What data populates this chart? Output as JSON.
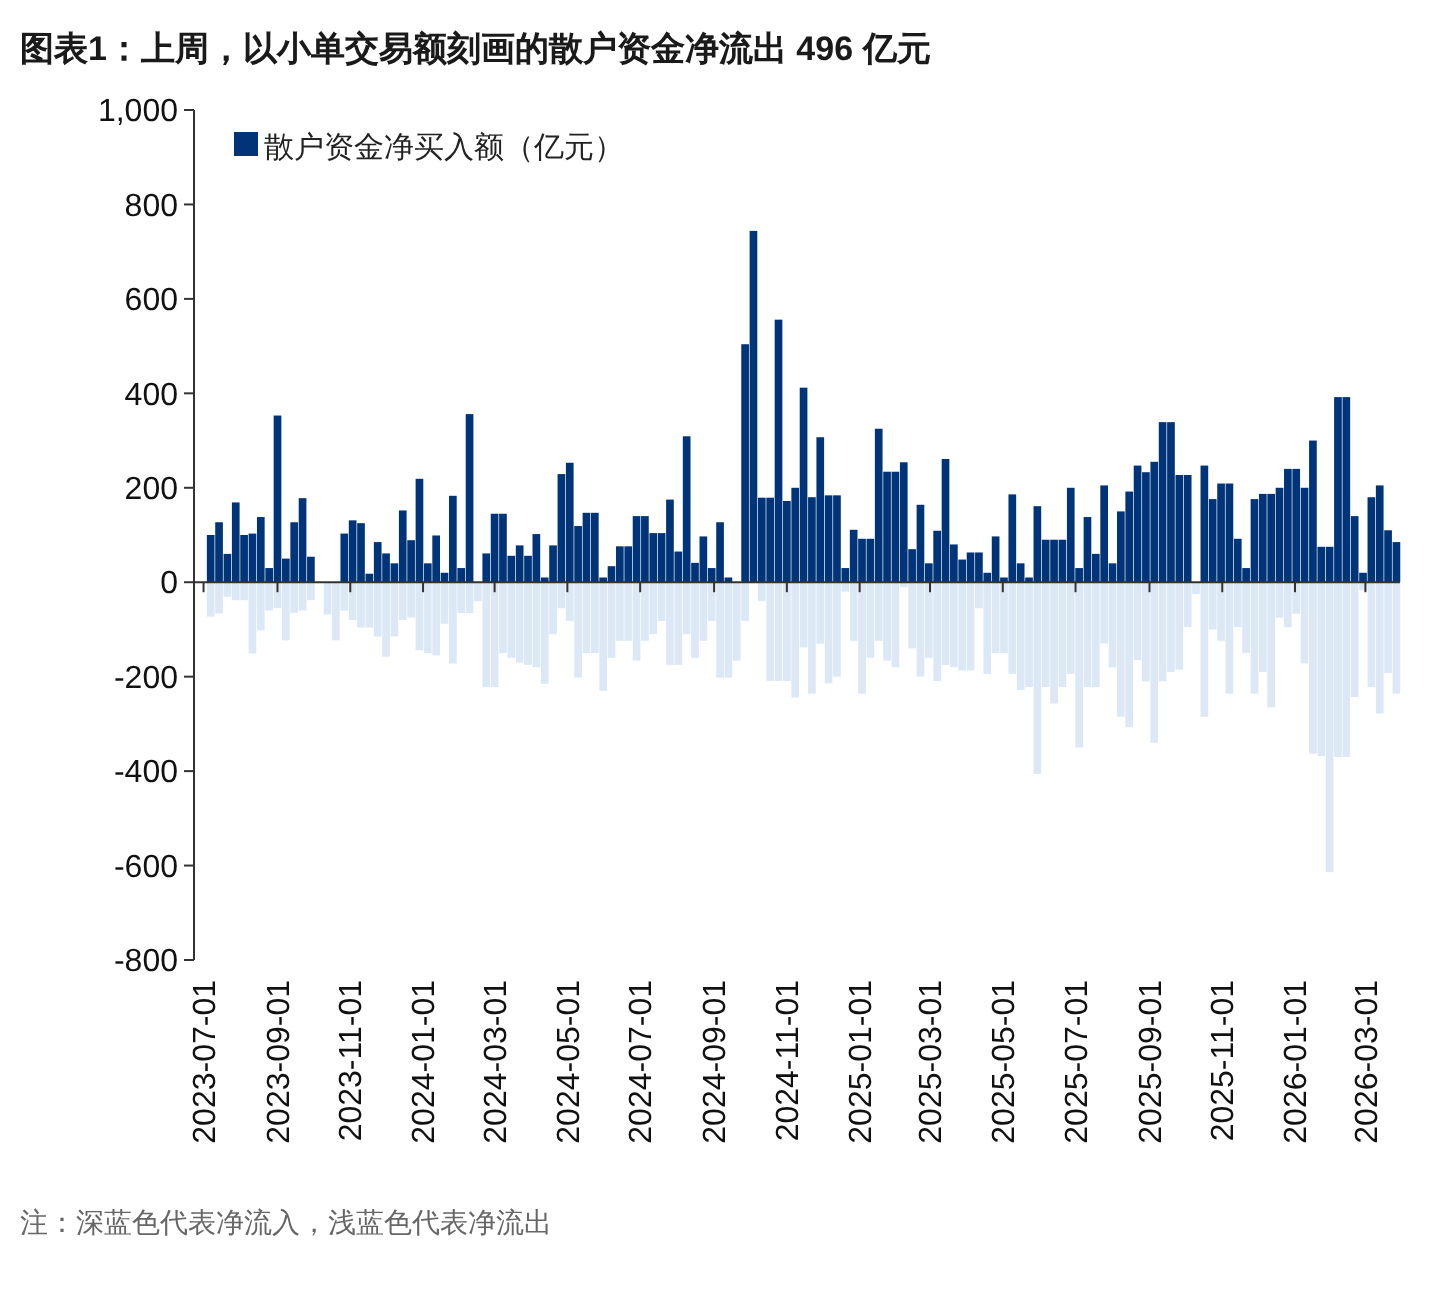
{
  "chart_data": {
    "type": "bar",
    "title": "图表1：上周，以小单交易额刻画的散户资金净流出 496 亿元",
    "annotations": [
      "注：深蓝色代表净流入，浅蓝色代表净流出"
    ],
    "x": [
      "2023-07-07",
      "2023-07-14",
      "2023-07-21",
      "2023-07-28",
      "2023-08-04",
      "2023-08-11",
      "2023-08-18",
      "2023-08-25",
      "2023-09-01",
      "2023-09-08",
      "2023-09-15",
      "2023-09-22",
      "2023-09-29",
      "2023-10-06",
      "2023-10-13",
      "2023-10-20",
      "2023-10-27",
      "2023-11-03",
      "2023-11-10",
      "2023-11-17",
      "2023-11-24",
      "2023-12-01",
      "2023-12-08",
      "2023-12-15",
      "2023-12-22",
      "2023-12-29",
      "2024-01-05",
      "2024-01-12",
      "2024-01-19",
      "2024-01-26",
      "2024-02-02",
      "2024-02-09",
      "2024-02-16",
      "2024-02-23",
      "2024-03-01",
      "2024-03-08",
      "2024-03-15",
      "2024-03-22",
      "2024-03-29",
      "2024-04-05",
      "2024-04-12",
      "2024-04-19",
      "2024-04-26",
      "2024-05-03",
      "2024-05-10",
      "2024-05-17",
      "2024-05-24",
      "2024-05-31",
      "2024-06-07",
      "2024-06-14",
      "2024-06-21",
      "2024-06-28",
      "2024-07-05",
      "2024-07-12",
      "2024-07-19",
      "2024-07-26",
      "2024-08-02",
      "2024-08-09",
      "2024-08-16",
      "2024-08-23",
      "2024-08-30",
      "2024-09-06",
      "2024-09-13",
      "2024-09-20",
      "2024-09-27",
      "2024-10-04",
      "2024-10-11",
      "2024-10-18",
      "2024-10-25",
      "2024-11-01",
      "2024-11-08",
      "2024-11-15",
      "2024-11-22",
      "2024-11-29",
      "2024-12-06",
      "2024-12-13",
      "2024-12-20",
      "2024-12-27",
      "2025-01-03",
      "2025-01-10",
      "2025-01-17",
      "2025-01-24",
      "2025-01-31",
      "2025-02-07",
      "2025-02-14",
      "2025-02-21",
      "2025-02-28",
      "2025-03-07",
      "2025-03-14",
      "2025-03-21",
      "2025-03-28",
      "2025-04-04",
      "2025-04-11",
      "2025-04-18",
      "2025-04-25",
      "2025-05-02",
      "2025-05-09",
      "2025-05-16",
      "2025-05-23",
      "2025-05-30",
      "2025-06-06",
      "2025-06-13",
      "2025-06-20",
      "2025-06-27",
      "2025-07-04",
      "2025-07-11",
      "2025-07-18",
      "2025-07-25",
      "2025-08-01",
      "2025-08-08",
      "2025-08-15",
      "2025-08-22",
      "2025-08-29",
      "2025-09-05",
      "2025-09-12",
      "2025-09-19",
      "2025-09-26",
      "2025-10-03",
      "2025-10-10",
      "2025-10-17",
      "2025-10-24",
      "2025-10-31",
      "2025-11-07",
      "2025-11-14",
      "2025-11-21",
      "2025-11-28",
      "2025-12-05",
      "2025-12-12",
      "2025-12-19",
      "2025-12-26",
      "2026-01-02",
      "2026-01-09",
      "2026-01-16",
      "2026-01-23",
      "2026-01-30",
      "2026-02-06",
      "2026-02-13",
      "2026-02-20",
      "2026-02-27",
      "2026-03-06",
      "2026-03-13",
      "2026-03-20",
      "2026-03-27"
    ],
    "series": [
      {
        "name": "散户资金净买入额（亿元）",
        "color": "#003478",
        "values": [
          100,
          127,
          60,
          169,
          100,
          103,
          138,
          30,
          353,
          50,
          127,
          178,
          54,
          null,
          null,
          null,
          103,
          131,
          125,
          18,
          85,
          61,
          40,
          152,
          89,
          219,
          40,
          99,
          20,
          183,
          30,
          356,
          null,
          61,
          145,
          145,
          56,
          78,
          56,
          102,
          10,
          78,
          229,
          253,
          119,
          147,
          147,
          10,
          34,
          76,
          76,
          140,
          140,
          104,
          104,
          175,
          65,
          309,
          41,
          97,
          30,
          127,
          10,
          null,
          504,
          744,
          179,
          179,
          556,
          172,
          200,
          412,
          180,
          307,
          184,
          184,
          30,
          111,
          92,
          92,
          325,
          234,
          234,
          254,
          70,
          164,
          40,
          109,
          261,
          80,
          48,
          63,
          63,
          20,
          97,
          10,
          186,
          40,
          10,
          161,
          90,
          90,
          90,
          200,
          30,
          138,
          60,
          205,
          40,
          150,
          192,
          247,
          233,
          255,
          339,
          339,
          227,
          227,
          null,
          247,
          176,
          209,
          209,
          92,
          30,
          176,
          187,
          187,
          200,
          240,
          240,
          200,
          300,
          75,
          75,
          392,
          392,
          140,
          20,
          180,
          205,
          110,
          85
        ]
      },
      {
        "color": "#dce8f5",
        "values": [
          -73,
          -66,
          -31,
          -38,
          -38,
          -151,
          -102,
          -60,
          -55,
          -123,
          -65,
          -60,
          -38,
          null,
          -68,
          -123,
          -60,
          -80,
          -96,
          -96,
          -115,
          -158,
          -115,
          -80,
          -75,
          -144,
          -150,
          -155,
          -88,
          -172,
          -65,
          -65,
          -40,
          -222,
          -222,
          -150,
          -160,
          -170,
          -175,
          -180,
          -215,
          -110,
          -55,
          -82,
          -202,
          -150,
          -150,
          -230,
          -160,
          -124,
          -124,
          -166,
          -124,
          -110,
          -82,
          -175,
          -175,
          -110,
          -160,
          -124,
          -82,
          -202,
          -202,
          -166,
          -82,
          null,
          -40,
          -209,
          -209,
          -209,
          -244,
          -138,
          -236,
          -130,
          -214,
          -200,
          -20,
          -124,
          -236,
          -160,
          -124,
          -166,
          -180,
          -10,
          -140,
          -200,
          -160,
          -209,
          -175,
          -180,
          -187,
          -187,
          -55,
          -194,
          -150,
          -150,
          -194,
          -228,
          -222,
          -406,
          -222,
          -257,
          -222,
          -194,
          -350,
          -222,
          -222,
          -130,
          -180,
          -285,
          -307,
          -165,
          -210,
          -340,
          -210,
          -190,
          -185,
          -95,
          -25,
          -285,
          -100,
          -124,
          -236,
          -95,
          -150,
          -236,
          -190,
          -265,
          -75,
          -95,
          -67,
          -172,
          -363,
          -368,
          -614,
          -370,
          -370,
          -243,
          -17,
          -222,
          -278,
          -192,
          -236
        ]
      }
    ],
    "stacked": true,
    "xlim": [
      "2023-06-23",
      "2026-03-30"
    ],
    "xticks": [
      "2023-07-01",
      "2023-09-01",
      "2023-11-01",
      "2024-01-01",
      "2024-03-01",
      "2024-05-01",
      "2024-07-01",
      "2024-09-01",
      "2024-11-01",
      "2025-01-01",
      "2025-03-01",
      "2025-05-01",
      "2025-07-01",
      "2025-09-01",
      "2025-11-01",
      "2026-01-01",
      "2026-03-01"
    ],
    "ylim": [
      -800,
      1000
    ],
    "yticks": [
      -800,
      -600,
      -400,
      -200,
      0,
      200,
      400,
      600,
      800,
      {
        "value": 1000,
        "label": "1,000"
      }
    ],
    "legend": "top left"
  }
}
